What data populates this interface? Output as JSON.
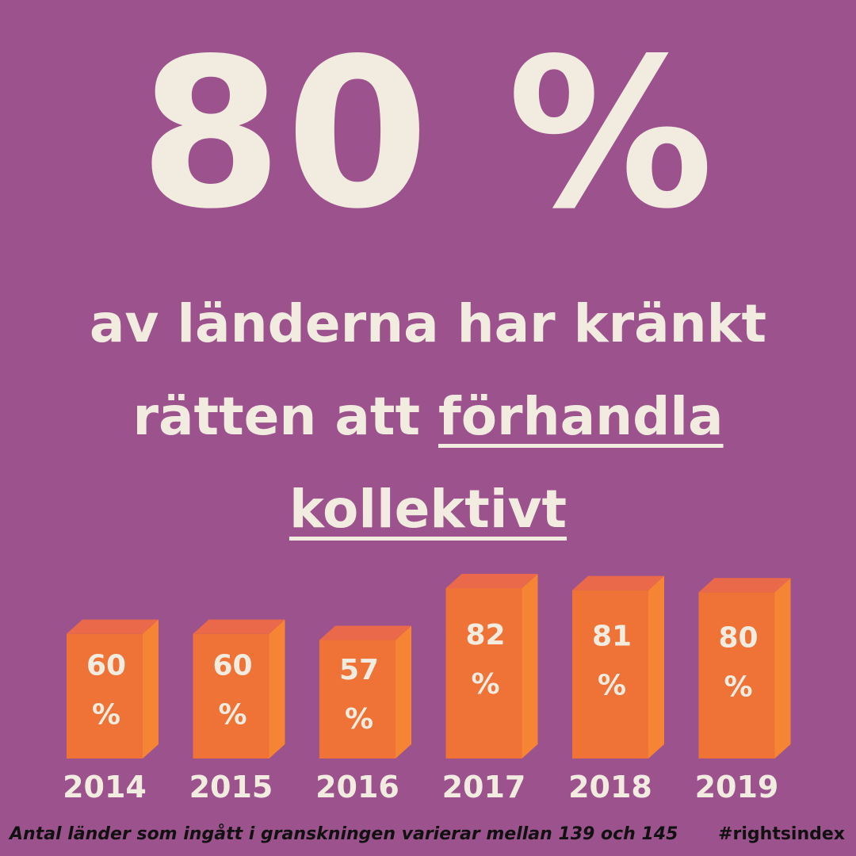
{
  "headline": "80 %",
  "subtitle": {
    "line1": "av länderna har kränkt",
    "line2_prefix": "rätten att ",
    "line2_underlined": "förhandla",
    "line3_underlined": "kollektivt"
  },
  "chart_data": {
    "type": "bar",
    "categories": [
      "2014",
      "2015",
      "2016",
      "2017",
      "2018",
      "2019"
    ],
    "values": [
      60,
      60,
      57,
      82,
      81,
      80
    ],
    "value_labels": [
      "60\n%",
      "60\n%",
      "57\n%",
      "82\n%",
      "81\n%",
      "80\n%"
    ],
    "unit": "%",
    "colors": {
      "front": "#ef7236",
      "top": "#e9694a",
      "side": "#f58434",
      "text": "#f2ece0"
    }
  },
  "footnote": "Antal länder som ingått i granskningen varierar mellan 139 och 145",
  "hashtag": "#rightsindex"
}
